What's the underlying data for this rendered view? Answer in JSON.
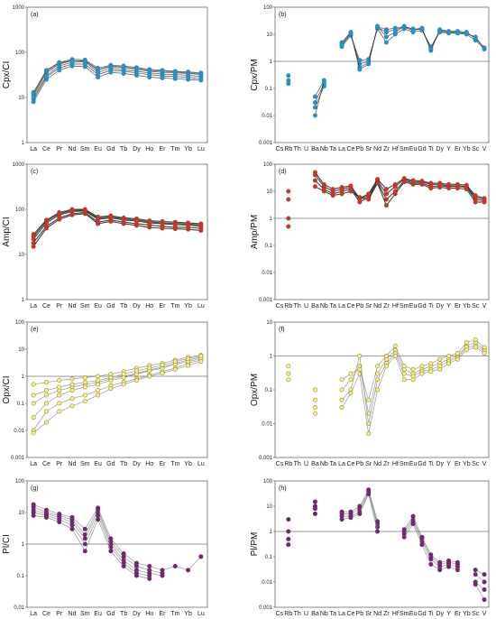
{
  "chart_data": [
    {
      "type": "line",
      "panel_label": "(a)",
      "ylabel": "Cpx/CI",
      "yscale": "log",
      "ylim": [
        1,
        1000
      ],
      "yticks": [
        "1",
        "10",
        "100",
        "1000"
      ],
      "categories": [
        "La",
        "Ce",
        "Pr",
        "Nd",
        "Sm",
        "Eu",
        "Gd",
        "Tb",
        "Dy",
        "Ho",
        "Er",
        "Tm",
        "Yb",
        "Lu"
      ],
      "reference_line": null,
      "color": "#2c8fbf",
      "marker": "filled-circle",
      "series": [
        {
          "values": [
            11,
            35,
            55,
            65,
            65,
            40,
            48,
            45,
            42,
            38,
            36,
            35,
            34,
            32
          ]
        },
        {
          "values": [
            9,
            28,
            45,
            55,
            55,
            32,
            40,
            38,
            35,
            32,
            30,
            29,
            28,
            26
          ]
        },
        {
          "values": [
            13,
            40,
            60,
            70,
            68,
            45,
            52,
            50,
            46,
            42,
            40,
            38,
            37,
            35
          ]
        },
        {
          "values": [
            8,
            25,
            40,
            50,
            48,
            28,
            36,
            34,
            31,
            28,
            27,
            26,
            25,
            24
          ]
        },
        {
          "values": [
            12,
            38,
            58,
            66,
            64,
            42,
            50,
            47,
            44,
            40,
            38,
            37,
            35,
            34
          ]
        },
        {
          "values": [
            10,
            30,
            50,
            60,
            62,
            36,
            44,
            41,
            38,
            35,
            33,
            32,
            31,
            29
          ]
        }
      ]
    },
    {
      "type": "line",
      "panel_label": "(b)",
      "ylabel": "Cpx/PM",
      "yscale": "log",
      "ylim": [
        0.001,
        100
      ],
      "yticks": [
        "0.001",
        "0.01",
        "0.1",
        "1",
        "10",
        "100"
      ],
      "categories": [
        "Cs",
        "Rb",
        "Th",
        "U",
        "Ba",
        "Nb",
        "Ta",
        "La",
        "Ce",
        "Pb",
        "Sr",
        "Nd",
        "Zr",
        "Hf",
        "Sm",
        "Eu",
        "Gd",
        "Ti",
        "Dy",
        "Y",
        "Er",
        "Yb",
        "Sc",
        "V"
      ],
      "reference_line": 1,
      "color": "#2c8fbf",
      "marker": "filled-circle",
      "series": [
        {
          "values": [
            null,
            0.3,
            null,
            null,
            0.05,
            0.2,
            null,
            4,
            10,
            0.8,
            1,
            18,
            12,
            15,
            18,
            14,
            16,
            3,
            14,
            12,
            12,
            11,
            8,
            3
          ]
        },
        {
          "values": [
            null,
            0.2,
            null,
            null,
            0.03,
            0.15,
            null,
            5,
            12,
            0.6,
            0.9,
            20,
            8,
            12,
            20,
            15,
            17,
            2.5,
            15,
            13,
            13,
            12,
            7,
            3.2
          ]
        },
        {
          "values": [
            null,
            0.15,
            null,
            null,
            0.02,
            0.12,
            null,
            3.5,
            9,
            1.1,
            1.2,
            16,
            5,
            10,
            16,
            12,
            14,
            3.5,
            12,
            11,
            11,
            10,
            6,
            2.8
          ]
        },
        {
          "values": [
            null,
            null,
            null,
            null,
            0.01,
            0.18,
            null,
            4.5,
            11,
            0.5,
            0.8,
            19,
            15,
            17,
            19,
            16,
            15,
            2.8,
            13,
            12,
            11,
            11,
            7.5,
            3
          ]
        }
      ]
    },
    {
      "type": "line",
      "panel_label": "(c)",
      "ylabel": "Amp/CI",
      "yscale": "log",
      "ylim": [
        1,
        1000
      ],
      "yticks": [
        "1",
        "10",
        "100",
        "1000"
      ],
      "categories": [
        "La",
        "Ce",
        "Pr",
        "Nd",
        "Sm",
        "Eu",
        "Gd",
        "Tb",
        "Dy",
        "Ho",
        "Er",
        "Tm",
        "Yb",
        "Lu"
      ],
      "reference_line": null,
      "color": "#c0392b",
      "marker": "filled-circle",
      "series": [
        {
          "values": [
            22,
            50,
            75,
            90,
            92,
            60,
            65,
            58,
            55,
            50,
            48,
            46,
            45,
            42
          ]
        },
        {
          "values": [
            18,
            42,
            65,
            80,
            85,
            52,
            58,
            52,
            48,
            45,
            42,
            40,
            40,
            38
          ]
        },
        {
          "values": [
            28,
            58,
            85,
            100,
            100,
            68,
            72,
            65,
            62,
            56,
            54,
            52,
            50,
            48
          ]
        },
        {
          "values": [
            15,
            38,
            60,
            75,
            80,
            48,
            54,
            48,
            44,
            40,
            38,
            37,
            36,
            34
          ]
        },
        {
          "values": [
            25,
            55,
            80,
            95,
            95,
            64,
            68,
            62,
            58,
            53,
            50,
            49,
            47,
            45
          ]
        }
      ]
    },
    {
      "type": "line",
      "panel_label": "(d)",
      "ylabel": "Amp/PM",
      "yscale": "log",
      "ylim": [
        0.001,
        100
      ],
      "yticks": [
        "0.001",
        "0.01",
        "0.1",
        "1",
        "10",
        "100"
      ],
      "categories": [
        "Cs",
        "Rb",
        "Th",
        "U",
        "Ba",
        "Nb",
        "Ta",
        "La",
        "Ce",
        "Pb",
        "Sr",
        "Nd",
        "Zr",
        "Hf",
        "Sm",
        "Eu",
        "Gd",
        "Ti",
        "Dy",
        "Y",
        "Er",
        "Yb",
        "Sc",
        "V"
      ],
      "reference_line": 1,
      "color": "#c0392b",
      "marker": "filled-circle",
      "series": [
        {
          "values": [
            null,
            5,
            null,
            null,
            40,
            15,
            10,
            12,
            14,
            5,
            7,
            25,
            8,
            15,
            28,
            22,
            22,
            18,
            18,
            16,
            16,
            15,
            6,
            5
          ]
        },
        {
          "values": [
            null,
            1,
            null,
            null,
            25,
            12,
            8,
            10,
            12,
            4,
            6,
            22,
            5,
            10,
            25,
            20,
            20,
            15,
            16,
            15,
            15,
            14,
            5,
            4.5
          ]
        },
        {
          "values": [
            null,
            0.5,
            null,
            null,
            15,
            10,
            7,
            8,
            10,
            6,
            5,
            20,
            3,
            8,
            22,
            18,
            18,
            13,
            14,
            13,
            13,
            12,
            4,
            4
          ]
        },
        {
          "values": [
            null,
            10,
            null,
            null,
            50,
            18,
            12,
            14,
            16,
            5.5,
            8,
            28,
            12,
            18,
            30,
            25,
            24,
            20,
            20,
            18,
            18,
            17,
            7,
            5.5
          ]
        }
      ]
    },
    {
      "type": "line",
      "panel_label": "(e)",
      "ylabel": "Opx/CI",
      "yscale": "log",
      "ylim": [
        0.001,
        100
      ],
      "yticks": [
        "0.001",
        "0.01",
        "0.1",
        "1",
        "10",
        "100"
      ],
      "categories": [
        "La",
        "Ce",
        "Pr",
        "Nd",
        "Sm",
        "Eu",
        "Gd",
        "Tb",
        "Dy",
        "Ho",
        "Er",
        "Tm",
        "Yb",
        "Lu"
      ],
      "reference_line": 1,
      "color": "#d4c81e",
      "marker": "open-circle",
      "series": [
        {
          "values": [
            0.01,
            0.05,
            0.1,
            0.15,
            0.2,
            0.3,
            0.45,
            0.6,
            0.8,
            1.1,
            1.5,
            2,
            3,
            4
          ]
        },
        {
          "values": [
            0.1,
            0.2,
            0.3,
            0.4,
            0.5,
            0.6,
            0.8,
            1,
            1.3,
            1.7,
            2.2,
            3,
            4,
            5
          ]
        },
        {
          "values": [
            0.5,
            0.6,
            0.7,
            0.8,
            0.9,
            1,
            1.2,
            1.5,
            2,
            2.5,
            3,
            4,
            5,
            6
          ]
        },
        {
          "values": [
            0.03,
            0.1,
            0.2,
            0.3,
            0.4,
            0.5,
            0.7,
            0.9,
            1.2,
            1.6,
            2,
            2.8,
            3.5,
            4.5
          ]
        },
        {
          "values": [
            0.2,
            0.3,
            0.4,
            0.5,
            0.6,
            0.7,
            0.9,
            1.2,
            1.6,
            2,
            2.6,
            3.5,
            4.5,
            5.5
          ]
        },
        {
          "values": [
            0.008,
            0.02,
            0.05,
            0.08,
            0.12,
            0.2,
            0.35,
            0.5,
            0.7,
            1,
            1.3,
            1.8,
            2.5,
            3.5
          ]
        }
      ]
    },
    {
      "type": "line",
      "panel_label": "(f)",
      "ylabel": "Opx/PM",
      "yscale": "log",
      "ylim": [
        0.001,
        10
      ],
      "yticks": [
        "0.001",
        "0.01",
        "0.1",
        "1",
        "10"
      ],
      "categories": [
        "Cs",
        "Rb",
        "Th",
        "U",
        "Ba",
        "Nb",
        "Ta",
        "La",
        "Ce",
        "Pb",
        "Sr",
        "Nd",
        "Zr",
        "Hf",
        "Sm",
        "Eu",
        "Gd",
        "Ti",
        "Dy",
        "Y",
        "Er",
        "Yb",
        "Sc",
        "V"
      ],
      "reference_line": 1,
      "color": "#d4c81e",
      "marker": "open-circle",
      "series": [
        {
          "values": [
            null,
            0.3,
            null,
            null,
            0.05,
            null,
            null,
            0.1,
            0.2,
            0.5,
            0.02,
            0.3,
            0.8,
            1.5,
            0.4,
            0.3,
            0.4,
            0.5,
            0.6,
            0.8,
            1,
            2,
            2.5,
            1.5
          ]
        },
        {
          "values": [
            null,
            0.5,
            null,
            null,
            0.03,
            null,
            null,
            0.05,
            0.1,
            1,
            0.01,
            0.2,
            0.6,
            1.2,
            0.3,
            0.25,
            0.35,
            0.4,
            0.5,
            0.7,
            0.9,
            1.8,
            2,
            1.4
          ]
        },
        {
          "values": [
            null,
            0.2,
            null,
            null,
            0.02,
            null,
            null,
            0.03,
            0.08,
            0.3,
            0.005,
            0.1,
            0.5,
            1,
            0.2,
            0.2,
            0.3,
            0.35,
            0.4,
            0.6,
            0.8,
            1.5,
            1.8,
            1.2
          ]
        },
        {
          "values": [
            null,
            null,
            null,
            null,
            0.1,
            null,
            null,
            0.2,
            0.3,
            0.4,
            0.05,
            0.5,
            1,
            2,
            0.5,
            0.4,
            0.5,
            0.6,
            0.8,
            1,
            1.2,
            2.5,
            3,
            1.8
          ]
        }
      ]
    },
    {
      "type": "line",
      "panel_label": "(g)",
      "ylabel": "Pl/CI",
      "yscale": "log",
      "ylim": [
        0.01,
        100
      ],
      "yticks": [
        "0.01",
        "0.1",
        "1",
        "10",
        "100"
      ],
      "categories": [
        "La",
        "Ce",
        "Pr",
        "Nd",
        "Sm",
        "Eu",
        "Gd",
        "Tb",
        "Dy",
        "Ho",
        "Er",
        "Tm",
        "Yb",
        "Lu"
      ],
      "reference_line": 1,
      "color": "#6e2a6e",
      "marker": "filled-circle",
      "series": [
        {
          "values": [
            15,
            10,
            8,
            6,
            2,
            12,
            1.2,
            0.4,
            0.2,
            0.15,
            0.12,
            null,
            null,
            null
          ]
        },
        {
          "values": [
            12,
            9,
            7,
            5,
            1.5,
            10,
            1,
            0.3,
            0.15,
            0.12,
            0.1,
            null,
            null,
            null
          ]
        },
        {
          "values": [
            10,
            8,
            6,
            4,
            1,
            8,
            0.8,
            0.25,
            0.12,
            0.1,
            null,
            null,
            null,
            null
          ]
        },
        {
          "values": [
            18,
            12,
            9,
            7,
            3,
            14,
            1.5,
            0.5,
            0.25,
            0.2,
            0.15,
            0.2,
            0.15,
            0.4
          ]
        },
        {
          "values": [
            8,
            7,
            5,
            3,
            0.6,
            6,
            0.6,
            0.2,
            0.1,
            0.08,
            null,
            null,
            null,
            null
          ]
        }
      ]
    },
    {
      "type": "line",
      "panel_label": "(h)",
      "ylabel": "Pl/PM",
      "yscale": "log",
      "ylim": [
        0.001,
        100
      ],
      "yticks": [
        "0.001",
        "0.01",
        "0.1",
        "1",
        "10",
        "100"
      ],
      "categories": [
        "Cs",
        "Rb",
        "Th",
        "U",
        "Ba",
        "Nb",
        "Ta",
        "La",
        "Ce",
        "Pb",
        "Sr",
        "Nd",
        "Zr",
        "Hf",
        "Sm",
        "Eu",
        "Gd",
        "Ti",
        "Dy",
        "Y",
        "Er",
        "Yb",
        "Sc",
        "V"
      ],
      "reference_line": 1,
      "color": "#6e2a6e",
      "marker": "filled-circle",
      "series": [
        {
          "values": [
            null,
            1,
            null,
            null,
            10,
            null,
            null,
            5,
            5,
            8,
            40,
            2,
            null,
            null,
            1,
            3,
            0.5,
            0.1,
            0.05,
            0.06,
            0.05,
            null,
            0.02,
            0.01
          ]
        },
        {
          "values": [
            null,
            0.5,
            null,
            null,
            8,
            null,
            null,
            4,
            4,
            6,
            35,
            1.5,
            null,
            null,
            0.8,
            2.5,
            0.4,
            0.08,
            0.04,
            0.05,
            0.04,
            null,
            0.01,
            0.005
          ]
        },
        {
          "values": [
            null,
            3,
            null,
            null,
            15,
            null,
            null,
            6,
            6,
            10,
            45,
            2.5,
            null,
            null,
            1.2,
            4,
            0.6,
            0.12,
            0.06,
            0.07,
            0.06,
            null,
            0.03,
            0.02
          ]
        },
        {
          "values": [
            null,
            0.3,
            null,
            null,
            5,
            null,
            null,
            3,
            3.5,
            5,
            30,
            1,
            null,
            null,
            0.6,
            2,
            0.3,
            0.05,
            0.03,
            0.04,
            0.03,
            null,
            0.008,
            0.002
          ]
        }
      ]
    }
  ]
}
